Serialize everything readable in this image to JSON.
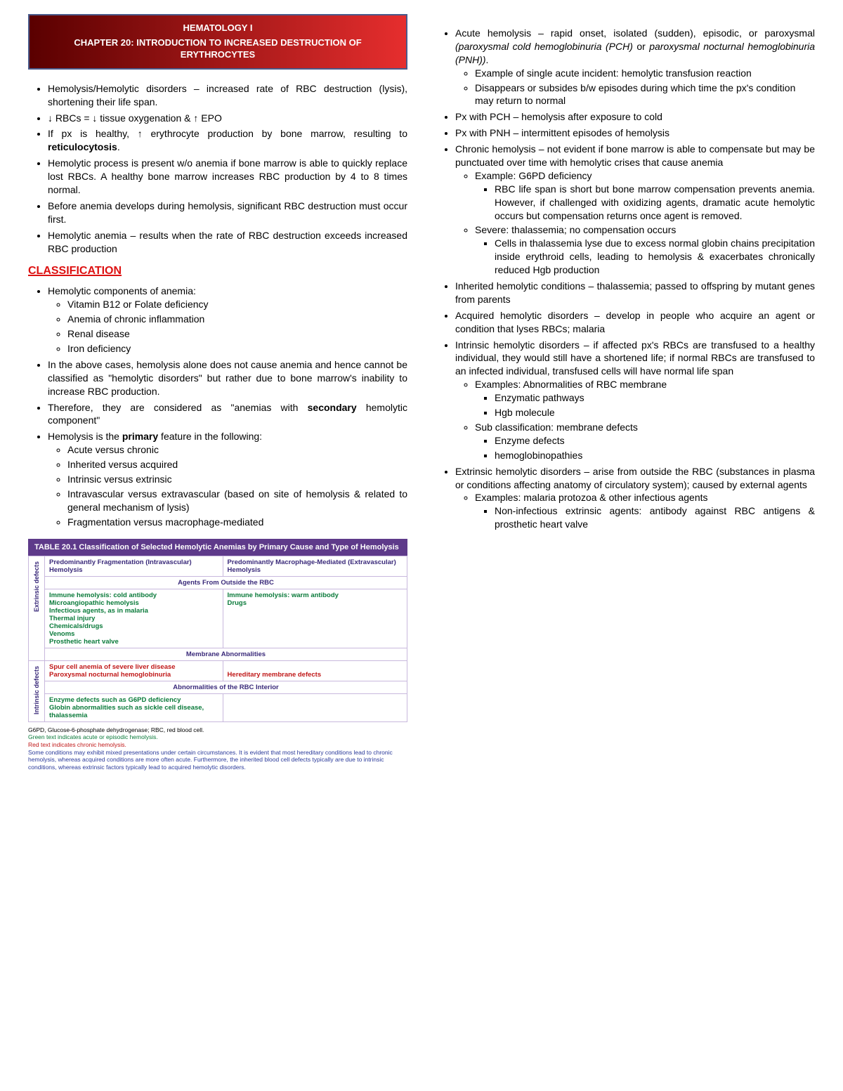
{
  "header": {
    "line1": "HEMATOLOGY I",
    "line2": "CHAPTER 20: INTRODUCTION TO INCREASED DESTRUCTION OF ERYTHROCYTES"
  },
  "section_classification": "CLASSIFICATION",
  "left": {
    "intro": [
      "Hemolysis/Hemolytic disorders – increased rate of RBC destruction (lysis), shortening their life span.",
      "↓ RBCs = ↓ tissue oxygenation & ↑ EPO",
      "If px is healthy, ↑ erythrocyte production by bone marrow, resulting to <b>reticulocytosis</b>.",
      "Hemolytic process is present w/o anemia if bone marrow is able to quickly replace lost RBCs. A healthy bone marrow increases RBC production by 4 to 8 times normal.",
      "Before anemia develops during hemolysis, significant RBC destruction must occur first.",
      "Hemolytic anemia – results when the rate of RBC destruction exceeds increased RBC production"
    ],
    "class1_lead": "Hemolytic components of anemia:",
    "class1_sub": [
      "Vitamin B12 or Folate deficiency",
      "Anemia of chronic inflammation",
      "Renal disease",
      "Iron deficiency"
    ],
    "class2": "In the above cases, hemolysis alone does not cause anemia and hence cannot be classified as \"hemolytic disorders\" but rather due to bone marrow's inability to increase RBC production.",
    "class3": "Therefore, they are considered as \"anemias with <b>secondary</b> hemolytic component\"",
    "class4_lead": "Hemolysis is the <b>primary</b> feature in the following:",
    "class4_sub": [
      "Acute versus chronic",
      "Inherited versus acquired",
      "Intrinsic versus extrinsic",
      "Intravascular versus extravascular (based on site of hemolysis & related to general mechanism of lysis)",
      "Fragmentation versus macrophage-mediated"
    ]
  },
  "right": {
    "b1_lead": "Acute hemolysis – rapid onset, isolated (sudden), episodic, or paroxysmal <i>(paroxysmal cold hemoglobinuria (PCH)</i> or <i>paroxysmal nocturnal hemoglobinuria (PNH))</i>.",
    "b1_sub": [
      "Example of single acute incident: hemolytic transfusion reaction",
      "Disappears or subsides b/w episodes during which time the px's condition may return to normal"
    ],
    "b2": "Px with PCH – hemolysis after exposure to cold",
    "b3": "Px with PNH – intermittent episodes of hemolysis",
    "b4_lead": "Chronic hemolysis – not evident if bone marrow is able to compensate but may be punctuated over time with hemolytic crises that cause anemia",
    "b4_s1": "Example: G6PD deficiency",
    "b4_s1_sq": "RBC life span is short but bone marrow compensation prevents anemia. However, if challenged with oxidizing agents, dramatic acute hemolytic occurs but compensation returns once agent is removed.",
    "b4_s2": "Severe: thalassemia; no compensation occurs",
    "b4_s2_sq": "Cells in thalassemia lyse due to excess normal globin chains precipitation inside erythroid cells, leading to hemolysis & exacerbates chronically reduced Hgb production",
    "b5": "Inherited hemolytic conditions – thalassemia; passed to offspring by mutant genes from parents",
    "b6": "Acquired hemolytic disorders – develop in people who acquire an agent or condition that lyses RBCs; malaria",
    "b7_lead": "Intrinsic hemolytic disorders – if affected px's RBCs are transfused to a healthy individual, they would still have a shortened life; if normal RBCs are transfused to an infected individual, transfused cells will have normal life span",
    "b7_s1": "Examples: Abnormalities of RBC membrane",
    "b7_s1_sq": [
      "Enzymatic pathways",
      "Hgb molecule"
    ],
    "b7_s2": "Sub classification: membrane defects",
    "b7_s2_sq": [
      "Enzyme defects",
      "hemoglobinopathies"
    ],
    "b8_lead": "Extrinsic hemolytic disorders – arise from outside the RBC (substances in plasma or conditions affecting anatomy of circulatory system); caused by external agents",
    "b8_s1": "Examples: malaria protozoa & other infectious agents",
    "b8_s1_sq": "Non-infectious extrinsic agents: antibody against RBC antigens & prosthetic heart valve"
  },
  "table": {
    "title": "TABLE 20.1  Classification of Selected Hemolytic Anemias by Primary Cause and Type of Hemolysis",
    "col1": "Predominantly Fragmentation (Intravascular) Hemolysis",
    "col2": "Predominantly Macrophage-Mediated (Extravascular) Hemolysis",
    "band1": "Agents From Outside the RBC",
    "row_ext": "Extrinsic defects",
    "ext_left": "Immune hemolysis: cold antibody\nMicroangiopathic hemolysis\nInfectious agents, as in malaria\nThermal injury\nChemicals/drugs\nVenoms\nProsthetic heart valve",
    "ext_right": "Immune hemolysis: warm antibody\nDrugs",
    "band2": "Membrane Abnormalities",
    "mem_left": "Spur cell anemia of severe liver disease\nParoxysmal nocturnal hemoglobinuria",
    "mem_right": "Hereditary membrane defects",
    "band3": "Abnormalities of the RBC Interior",
    "row_int": "Intrinsic defects",
    "int_left": "Enzyme defects such as G6PD deficiency\nGlobin abnormalities such as sickle cell disease, thalassemia",
    "int_right": ""
  },
  "footnotes": {
    "f1": "G6PD, Glucose-6-phosphate dehydrogenase; RBC, red blood cell.",
    "f2": "Green text indicates acute or episodic hemolysis.",
    "f3": "Red text indicates chronic hemolysis.",
    "f4": "Some conditions may exhibit mixed presentations under certain circumstances. It is evident that most hereditary conditions lead to chronic hemolysis, whereas acquired conditions are more often acute. Furthermore, the inherited blood cell defects typically are due to intrinsic conditions, whereas extrinsic factors typically lead to acquired hemolytic disorders."
  }
}
